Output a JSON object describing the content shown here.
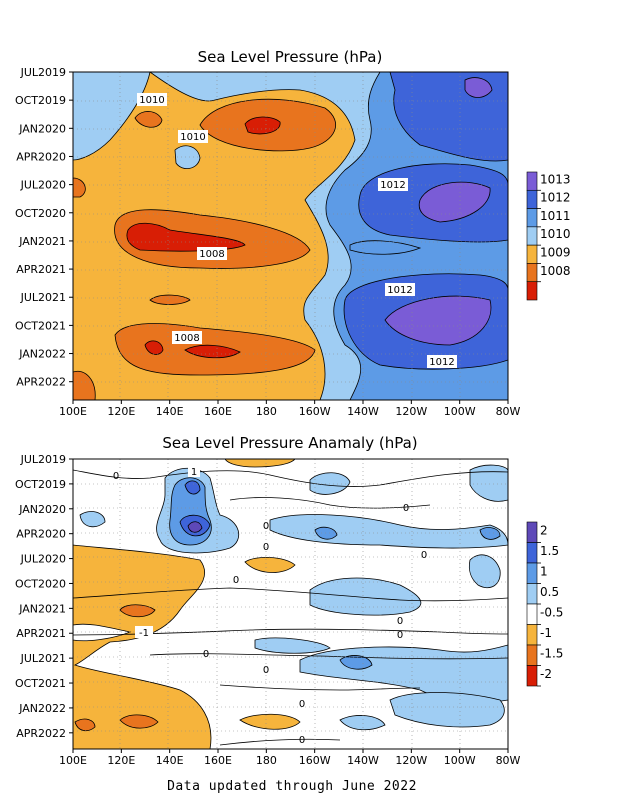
{
  "chart_data": [
    {
      "type": "heatmap",
      "title": "Sea Level Pressure (hPa)",
      "x_ticks": [
        "100E",
        "120E",
        "140E",
        "160E",
        "180",
        "160W",
        "140W",
        "120W",
        "100W",
        "80W"
      ],
      "y_ticks": [
        "JUL2019",
        "OCT2019",
        "JAN2020",
        "APR2020",
        "JUL2020",
        "OCT2020",
        "JAN2021",
        "APR2021",
        "JUL2021",
        "OCT2021",
        "JAN2022",
        "APR2022"
      ],
      "colorbar": [
        {
          "label": "1013",
          "color": "#7a5cd6"
        },
        {
          "label": "1012",
          "color": "#3e64d9"
        },
        {
          "label": "1011",
          "color": "#5d9be6"
        },
        {
          "label": "1010",
          "color": "#9fcdf3"
        },
        {
          "label": "1009",
          "color": "#f6b43c"
        },
        {
          "label": "1008",
          "color": "#e8741e"
        },
        {
          "label": "",
          "color": "#d81e05"
        }
      ],
      "contour_labels": [
        "1010",
        "1010",
        "1012",
        "1008",
        "1012",
        "1008",
        "1012"
      ]
    },
    {
      "type": "heatmap",
      "title": "Sea Level Pressure Anamaly (hPa)",
      "x_ticks": [
        "100E",
        "120E",
        "140E",
        "160E",
        "180",
        "160W",
        "140W",
        "120W",
        "100W",
        "80W"
      ],
      "y_ticks": [
        "JUL2019",
        "OCT2019",
        "JAN2020",
        "APR2020",
        "JUL2020",
        "OCT2020",
        "JAN2021",
        "APR2021",
        "JUL2021",
        "OCT2021",
        "JAN2022",
        "APR2022"
      ],
      "colorbar": [
        {
          "label": "2",
          "color": "#5e49b8"
        },
        {
          "label": "1.5",
          "color": "#3e64d9"
        },
        {
          "label": "1",
          "color": "#5d9be6"
        },
        {
          "label": "0.5",
          "color": "#9fcdf3"
        },
        {
          "label": "-0.5",
          "color": "#ffffff"
        },
        {
          "label": "-1",
          "color": "#f6b43c"
        },
        {
          "label": "-1.5",
          "color": "#e8741e"
        },
        {
          "label": "-2",
          "color": "#d81e05"
        }
      ],
      "contour_labels": [
        "1",
        "0",
        "0",
        "0",
        "0",
        "0",
        "0",
        "0",
        "0",
        "0",
        "0",
        "0",
        "0",
        "-1"
      ]
    }
  ],
  "footer": "Data updated through June 2022"
}
